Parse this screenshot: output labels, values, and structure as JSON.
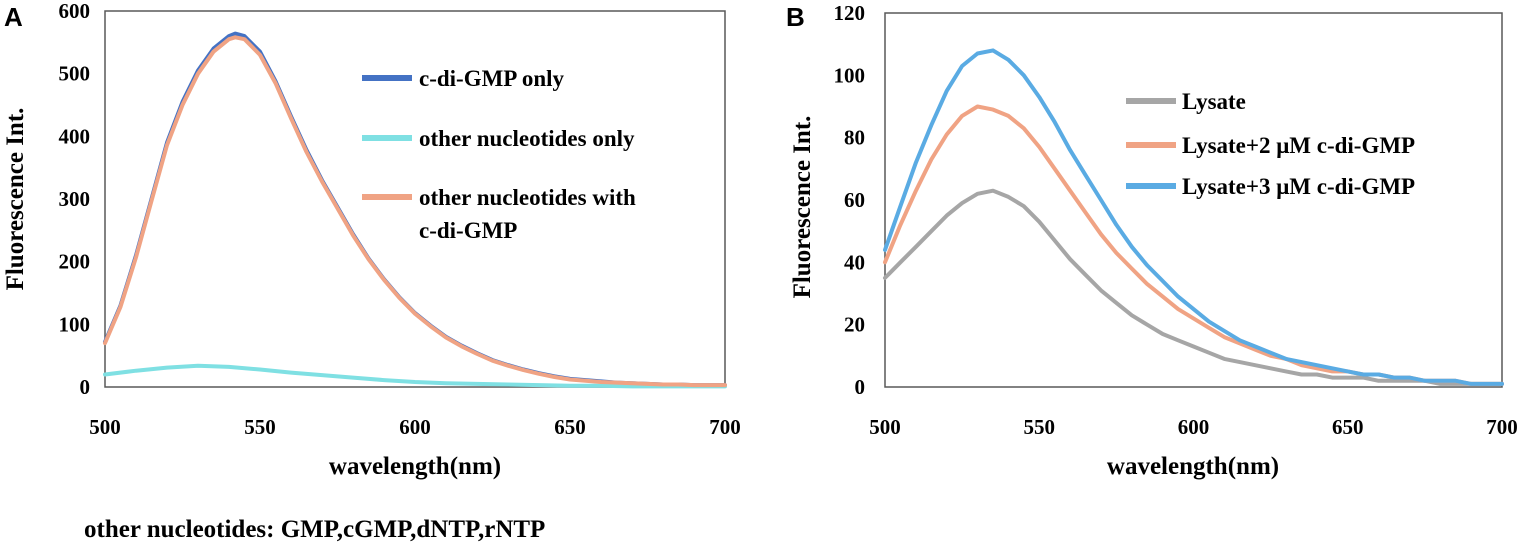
{
  "figure": {
    "footnote": "other nucleotides: GMP,cGMP,dNTP,rNTP"
  },
  "chart_data": [
    {
      "panel": "A",
      "type": "line",
      "title": "",
      "xlabel": "wavelength(nm)",
      "ylabel": "Fluorescence Int.",
      "xlim": [
        500,
        700
      ],
      "ylim": [
        0,
        600
      ],
      "xticks": [
        500,
        550,
        600,
        650,
        700
      ],
      "yticks": [
        0,
        100,
        200,
        300,
        400,
        500,
        600
      ],
      "grid": false,
      "legend_position": "top-right",
      "series": [
        {
          "name": "c-di-GMP only",
          "label_lines": [
            "c-di-GMP only"
          ],
          "color": "#4472c4",
          "x": [
            500,
            505,
            510,
            515,
            520,
            525,
            530,
            535,
            540,
            542,
            545,
            550,
            555,
            560,
            565,
            570,
            575,
            580,
            585,
            590,
            595,
            600,
            605,
            610,
            615,
            620,
            625,
            630,
            635,
            640,
            645,
            650,
            655,
            660,
            665,
            670,
            675,
            680,
            685,
            690,
            695,
            700
          ],
          "y": [
            72,
            130,
            210,
            300,
            390,
            455,
            505,
            540,
            560,
            564,
            560,
            535,
            488,
            432,
            378,
            330,
            287,
            244,
            205,
            172,
            143,
            118,
            98,
            80,
            66,
            54,
            43,
            35,
            28,
            22,
            17,
            13,
            11,
            9,
            7,
            6,
            5,
            4,
            4,
            3,
            3,
            3
          ]
        },
        {
          "name": "other nucleotides only",
          "label_lines": [
            "other nucleotides only"
          ],
          "color": "#7fe0e3",
          "x": [
            500,
            510,
            520,
            530,
            540,
            550,
            560,
            570,
            580,
            590,
            600,
            610,
            620,
            630,
            640,
            650,
            660,
            670,
            680,
            690,
            700
          ],
          "y": [
            20,
            26,
            31,
            34,
            32,
            28,
            23,
            19,
            15,
            11,
            8,
            6,
            5,
            4,
            3,
            2,
            2,
            1,
            1,
            1,
            1
          ]
        },
        {
          "name": "other nucleotides with c-di-GMP",
          "label_lines": [
            "other nucleotides with",
            "c-di-GMP"
          ],
          "color": "#f0a384",
          "x": [
            500,
            505,
            510,
            515,
            520,
            525,
            530,
            535,
            540,
            542,
            545,
            550,
            555,
            560,
            565,
            570,
            575,
            580,
            585,
            590,
            595,
            600,
            605,
            610,
            615,
            620,
            625,
            630,
            635,
            640,
            645,
            650,
            655,
            660,
            665,
            670,
            675,
            680,
            685,
            690,
            695,
            700
          ],
          "y": [
            70,
            128,
            207,
            297,
            386,
            450,
            500,
            535,
            555,
            558,
            555,
            530,
            485,
            429,
            375,
            328,
            285,
            242,
            204,
            171,
            142,
            117,
            97,
            79,
            65,
            53,
            42,
            34,
            27,
            21,
            16,
            12,
            10,
            8,
            7,
            6,
            5,
            4,
            4,
            3,
            3,
            3
          ]
        }
      ]
    },
    {
      "panel": "B",
      "type": "line",
      "title": "",
      "xlabel": "wavelength(nm)",
      "ylabel": "Fluorescence Int.",
      "xlim": [
        500,
        700
      ],
      "ylim": [
        0,
        120
      ],
      "xticks": [
        500,
        550,
        600,
        650,
        700
      ],
      "yticks": [
        0,
        20,
        40,
        60,
        80,
        100,
        120
      ],
      "grid": false,
      "legend_position": "top-right",
      "series": [
        {
          "name": "Lysate",
          "label_lines": [
            "Lysate"
          ],
          "color": "#a6a6a6",
          "x": [
            500,
            505,
            510,
            515,
            520,
            525,
            530,
            535,
            540,
            545,
            550,
            555,
            560,
            565,
            570,
            575,
            580,
            585,
            590,
            595,
            600,
            605,
            610,
            615,
            620,
            625,
            630,
            635,
            640,
            645,
            650,
            655,
            660,
            665,
            670,
            675,
            680,
            685,
            690,
            695,
            700
          ],
          "y": [
            35,
            40,
            45,
            50,
            55,
            59,
            62,
            63,
            61,
            58,
            53,
            47,
            41,
            36,
            31,
            27,
            23,
            20,
            17,
            15,
            13,
            11,
            9,
            8,
            7,
            6,
            5,
            4,
            4,
            3,
            3,
            3,
            2,
            2,
            2,
            2,
            1,
            1,
            1,
            1,
            1
          ]
        },
        {
          "name": "Lysate+2 μM c-di-GMP",
          "label_lines": [
            "Lysate+2 μM c-di-GMP"
          ],
          "color": "#f0a384",
          "x": [
            500,
            505,
            510,
            515,
            520,
            525,
            530,
            535,
            540,
            545,
            550,
            555,
            560,
            565,
            570,
            575,
            580,
            585,
            590,
            595,
            600,
            605,
            610,
            615,
            620,
            625,
            630,
            635,
            640,
            645,
            650,
            655,
            660,
            665,
            670,
            675,
            680,
            685,
            690,
            695,
            700
          ],
          "y": [
            40,
            52,
            63,
            73,
            81,
            87,
            90,
            89,
            87,
            83,
            77,
            70,
            63,
            56,
            49,
            43,
            38,
            33,
            29,
            25,
            22,
            19,
            16,
            14,
            12,
            10,
            9,
            7,
            6,
            5,
            5,
            4,
            4,
            3,
            3,
            2,
            2,
            2,
            1,
            1,
            1
          ]
        },
        {
          "name": "Lysate+3 μM c-di-GMP",
          "label_lines": [
            "Lysate+3 μM c-di-GMP"
          ],
          "color": "#5aabe3",
          "x": [
            500,
            505,
            510,
            515,
            520,
            525,
            530,
            535,
            540,
            545,
            550,
            555,
            560,
            565,
            570,
            575,
            580,
            585,
            590,
            595,
            600,
            605,
            610,
            615,
            620,
            625,
            630,
            635,
            640,
            645,
            650,
            655,
            660,
            665,
            670,
            675,
            680,
            685,
            690,
            695,
            700
          ],
          "y": [
            44,
            58,
            72,
            84,
            95,
            103,
            107,
            108,
            105,
            100,
            93,
            85,
            76,
            68,
            60,
            52,
            45,
            39,
            34,
            29,
            25,
            21,
            18,
            15,
            13,
            11,
            9,
            8,
            7,
            6,
            5,
            4,
            4,
            3,
            3,
            2,
            2,
            2,
            1,
            1,
            1
          ]
        }
      ]
    }
  ]
}
